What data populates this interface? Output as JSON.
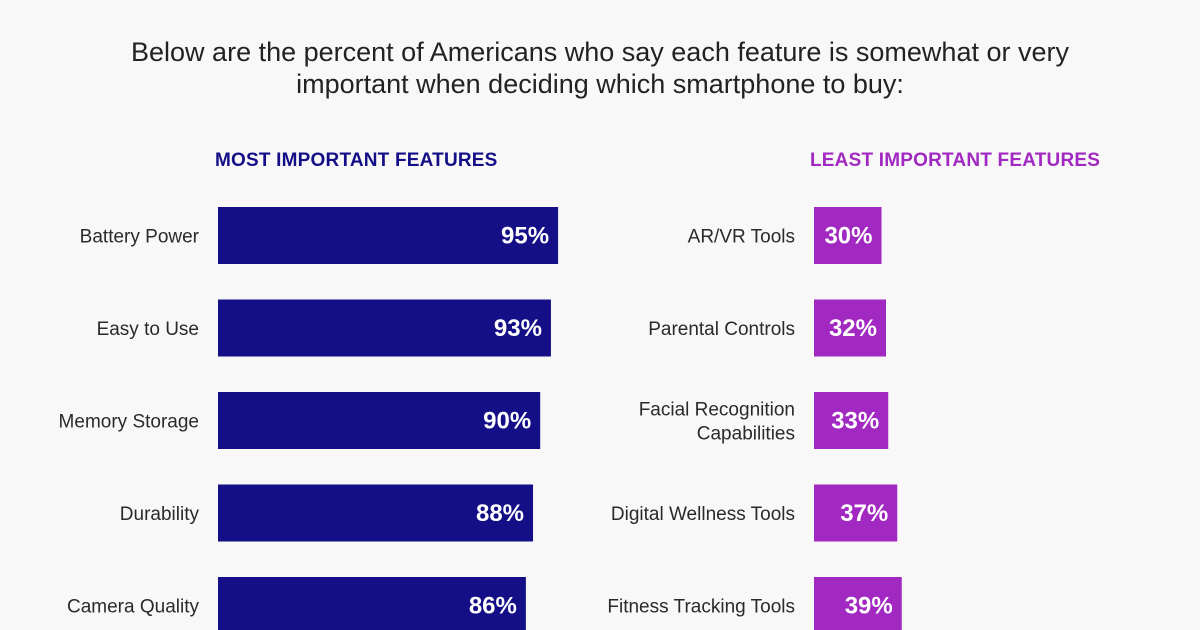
{
  "title": {
    "line1": "Below are the percent of Americans who say each feature is somewhat or very",
    "line2": "important when deciding which smartphone to buy:"
  },
  "colors": {
    "most": "#140f86",
    "least": "#a128c0"
  },
  "chart_data": [
    {
      "type": "bar",
      "orientation": "horizontal",
      "title": "MOST IMPORTANT FEATURES",
      "categories": [
        [
          "Battery Power"
        ],
        [
          "Easy to Use"
        ],
        [
          "Memory Storage"
        ],
        [
          "Durability"
        ],
        [
          "Camera Quality"
        ]
      ],
      "values": [
        95,
        93,
        90,
        88,
        86
      ],
      "value_labels": [
        "95%",
        "93%",
        "90%",
        "88%",
        "86%"
      ],
      "unit": "%",
      "xlim": [
        0,
        100
      ]
    },
    {
      "type": "bar",
      "orientation": "horizontal",
      "title": "LEAST IMPORTANT FEATURES",
      "categories": [
        [
          "AR/VR Tools"
        ],
        [
          "Parental Controls"
        ],
        [
          "Facial Recognition",
          "Capabilities"
        ],
        [
          "Digital Wellness Tools"
        ],
        [
          "Fitness Tracking Tools"
        ]
      ],
      "values": [
        30,
        32,
        33,
        37,
        39
      ],
      "value_labels": [
        "30%",
        "32%",
        "33%",
        "37%",
        "39%"
      ],
      "unit": "%",
      "xlim": [
        0,
        100
      ]
    }
  ]
}
